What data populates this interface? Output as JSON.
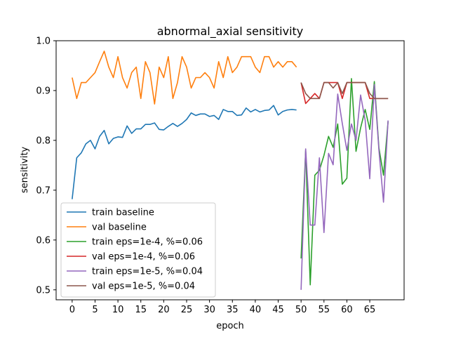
{
  "chart_data": {
    "type": "line",
    "title": "abnormal_axial sensitivity",
    "xlabel": "epoch",
    "ylabel": "sensitivity",
    "xlim": [
      -3.5,
      72.5
    ],
    "ylim": [
      0.48,
      1.0
    ],
    "xticks": [
      0,
      5,
      10,
      15,
      20,
      25,
      30,
      35,
      40,
      45,
      50,
      55,
      60,
      65
    ],
    "yticks": [
      0.5,
      0.6,
      0.7,
      0.8,
      0.9,
      1.0
    ],
    "legend_position": "lower-left",
    "grid": false,
    "series": [
      {
        "name": "train baseline",
        "color": "#1f77b4",
        "x_start": 0,
        "values": [
          0.682,
          0.765,
          0.775,
          0.793,
          0.8,
          0.783,
          0.808,
          0.82,
          0.793,
          0.804,
          0.807,
          0.806,
          0.829,
          0.814,
          0.823,
          0.823,
          0.832,
          0.832,
          0.835,
          0.822,
          0.821,
          0.828,
          0.834,
          0.828,
          0.834,
          0.842,
          0.855,
          0.85,
          0.853,
          0.853,
          0.848,
          0.85,
          0.842,
          0.862,
          0.858,
          0.858,
          0.85,
          0.851,
          0.865,
          0.857,
          0.862,
          0.857,
          0.86,
          0.861,
          0.87,
          0.851,
          0.858,
          0.861,
          0.862,
          0.861
        ]
      },
      {
        "name": "val baseline",
        "color": "#ff7f0e",
        "x_start": 0,
        "values": [
          0.926,
          0.884,
          0.916,
          0.916,
          0.926,
          0.936,
          0.958,
          0.979,
          0.947,
          0.926,
          0.968,
          0.926,
          0.905,
          0.936,
          0.947,
          0.884,
          0.958,
          0.936,
          0.873,
          0.947,
          0.926,
          0.968,
          0.884,
          0.916,
          0.968,
          0.947,
          0.905,
          0.926,
          0.926,
          0.936,
          0.926,
          0.905,
          0.958,
          0.926,
          0.968,
          0.936,
          0.947,
          0.968,
          0.968,
          0.968,
          0.947,
          0.936,
          0.968,
          0.968,
          0.947,
          0.958,
          0.947,
          0.958,
          0.958,
          0.947
        ]
      },
      {
        "name": "train eps=1e-4, %=0.06",
        "color": "#2ca02c",
        "x_start": 50,
        "values": [
          0.563,
          0.78,
          0.51,
          0.73,
          0.74,
          0.77,
          0.808,
          0.786,
          0.833,
          0.712,
          0.724,
          0.924,
          0.778,
          0.825,
          0.862,
          0.822,
          0.918,
          0.785,
          0.73,
          0.838
        ]
      },
      {
        "name": "val eps=1e-4, %=0.06",
        "color": "#d62728",
        "x_start": 50,
        "values": [
          0.916,
          0.874,
          0.884,
          0.894,
          0.884,
          0.916,
          0.916,
          0.916,
          0.916,
          0.884,
          0.916,
          0.916,
          0.916,
          0.916,
          0.916,
          0.884,
          0.884,
          0.884,
          0.884,
          0.884
        ]
      },
      {
        "name": "train eps=1e-5, %=0.04",
        "color": "#9467bd",
        "x_start": 50,
        "values": [
          0.5,
          0.783,
          0.63,
          0.63,
          0.765,
          0.615,
          0.774,
          0.751,
          0.893,
          0.834,
          0.78,
          0.833,
          0.8,
          0.891,
          0.84,
          0.723,
          0.912,
          0.78,
          0.676,
          0.84
        ]
      },
      {
        "name": "val eps=1e-5, %=0.04",
        "color": "#8c564b",
        "x_start": 50,
        "values": [
          0.916,
          0.894,
          0.884,
          0.884,
          0.884,
          0.916,
          0.916,
          0.905,
          0.916,
          0.894,
          0.916,
          0.916,
          0.916,
          0.916,
          0.916,
          0.894,
          0.884,
          0.884,
          0.884,
          0.884
        ]
      }
    ]
  }
}
